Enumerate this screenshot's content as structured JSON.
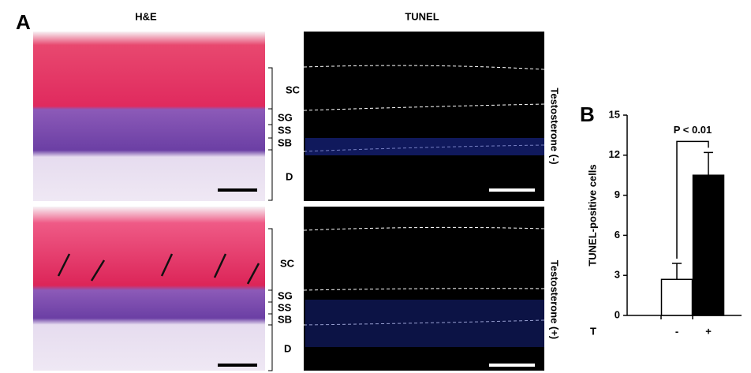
{
  "panel_a": {
    "label": "A",
    "columns": [
      "H&E",
      "TUNEL"
    ],
    "rows": [
      {
        "condition": "Testosterone (-)",
        "layers": [
          "SC",
          "SG",
          "SS",
          "SB",
          "D"
        ]
      },
      {
        "condition": "Testosterone (+)",
        "layers": [
          "SC",
          "SG",
          "SS",
          "SB",
          "D"
        ]
      }
    ]
  },
  "chart_data": {
    "type": "bar",
    "label": "B",
    "categories": [
      "-",
      "+"
    ],
    "x_label": "T",
    "y_label": "TUNEL-positive cells",
    "values": [
      2.7,
      10.5
    ],
    "errors": [
      1.2,
      1.7
    ],
    "colors": [
      "#ffffff",
      "#000000"
    ],
    "ylim": [
      0,
      15
    ],
    "yticks": [
      0,
      3,
      6,
      9,
      12,
      15
    ],
    "annotation": "P < 0.01"
  }
}
